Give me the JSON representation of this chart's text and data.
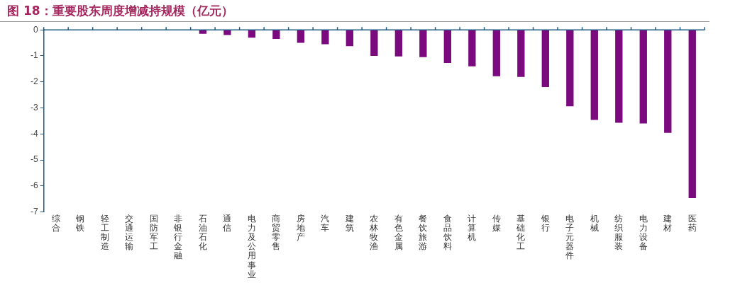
{
  "chart_data": {
    "type": "bar",
    "title": "图 18：重要股东周度增减持规模（亿元）",
    "categories": [
      "综合",
      "钢铁",
      "轻工制造",
      "交通运输",
      "国防军工",
      "非银行金融",
      "石油石化",
      "通信",
      "电力及公用事业",
      "商贸零售",
      "房地产",
      "汽车",
      "建筑",
      "农林牧渔",
      "有色金属",
      "餐饮旅游",
      "食品饮料",
      "计算机",
      "传媒",
      "基础化工",
      "银行",
      "电子元器件",
      "机械",
      "纺织服装",
      "电力设备",
      "建材",
      "医药"
    ],
    "values": [
      0,
      0,
      0,
      0,
      0,
      -0.02,
      -0.15,
      -0.2,
      -0.3,
      -0.35,
      -0.5,
      -0.55,
      -0.63,
      -1.0,
      -1.02,
      -1.05,
      -1.27,
      -1.4,
      -1.78,
      -1.81,
      -2.2,
      -2.94,
      -3.46,
      -3.57,
      -3.6,
      -3.96,
      -6.47
    ],
    "color": "#7b0a7e",
    "ylim": [
      -7,
      0
    ],
    "yticks": [
      0,
      -1,
      -2,
      -3,
      -4,
      -5,
      -6,
      -7
    ],
    "grid": false,
    "legend": false
  }
}
